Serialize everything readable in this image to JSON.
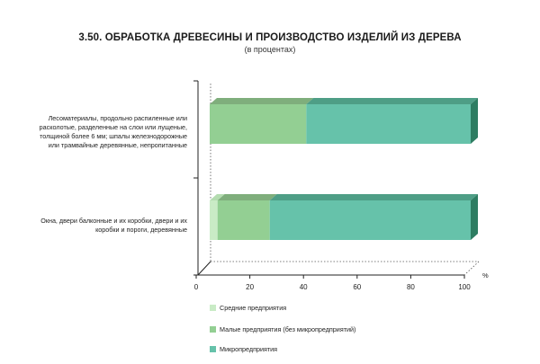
{
  "header": {
    "title": "3.50. ОБРАБОТКА ДРЕВЕСИНЫ И ПРОИЗВОДСТВО ИЗДЕЛИЙ ИЗ ДЕРЕВА",
    "subtitle": "(в процентах)"
  },
  "chart_data": {
    "type": "bar",
    "orientation": "horizontal",
    "stacked": true,
    "style": "3d",
    "categories": [
      "Лесоматериалы, продольно распиленные или расколотые, разделенные на слои или лущеные, толщиной более 6 мм; шпалы железнодорожные или трамвайные деревянные, непропитанные",
      "Окна, двери балконные и их коробки, двери и их коробки и пороги, деревянные"
    ],
    "category_lines": [
      [
        "Лесоматериалы, продольно распиленные или",
        "расколотые, разделенные на слои или лущеные,",
        "толщиной более 6 мм; шпалы железнодорожные",
        "или трамвайные деревянные, непропитанные"
      ],
      [
        "Окна, двери балконные и их коробки, двери и их",
        "коробки и пороги, деревянные"
      ]
    ],
    "series": [
      {
        "name": "Средние предприятия",
        "values": [
          0,
          3
        ],
        "color": "#c9ebc6",
        "color_top": "#b4dcb0",
        "color_side": "#a4cda0"
      },
      {
        "name": "Малые предприятия (без микропредприятий)",
        "values": [
          37,
          20
        ],
        "color": "#93cf93",
        "color_top": "#7fae7c",
        "color_side": "#6f9c6c"
      },
      {
        "name": "Микропредприятия",
        "values": [
          63,
          77
        ],
        "color": "#66c2aa",
        "color_top": "#4e9e86",
        "color_side": "#2e7d62"
      }
    ],
    "x_ticks": [
      0,
      20,
      40,
      60,
      80,
      100
    ],
    "xlim": [
      0,
      100
    ],
    "x_unit": "%",
    "legend_position": "bottom"
  }
}
